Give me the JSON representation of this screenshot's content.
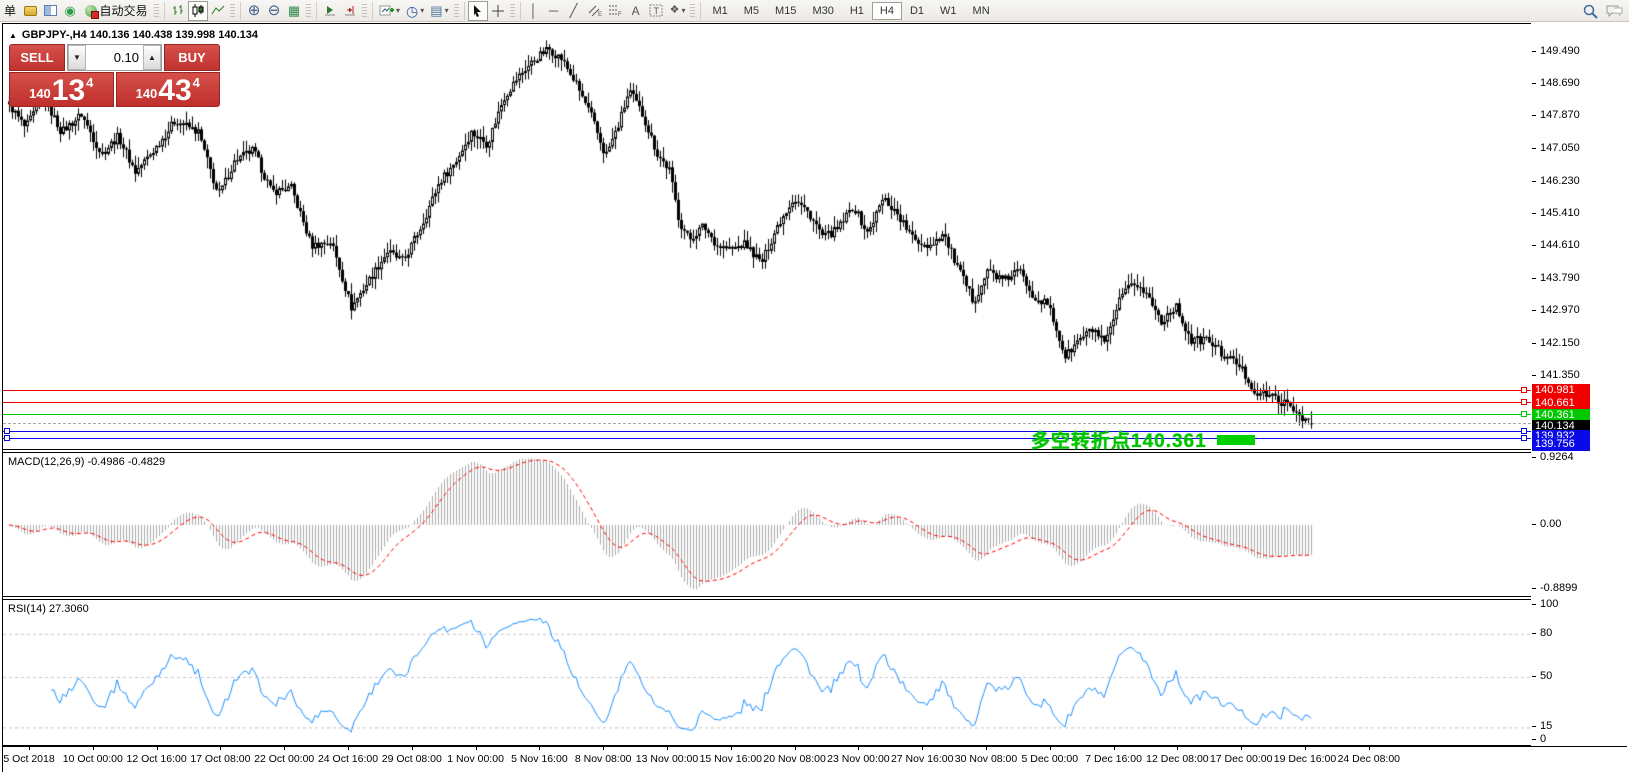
{
  "toolbar": {
    "menu_partial_label": "单",
    "autotrading_label": "自动交易",
    "timeframes": [
      "M1",
      "M5",
      "M15",
      "M30",
      "H1",
      "H4",
      "D1",
      "W1",
      "MN"
    ],
    "active_timeframe": "H4"
  },
  "chart_header": {
    "collapse_icon": "▲",
    "title": "GBPJPY-,H4  140.136 140.438 139.998 140.134"
  },
  "trade_panel": {
    "sell_label": "SELL",
    "buy_label": "BUY",
    "volume": "0.10",
    "sell_price": {
      "prefix": "140",
      "big": "13",
      "sup": "4"
    },
    "buy_price": {
      "prefix": "140",
      "big": "43",
      "sup": "4"
    }
  },
  "annotation": {
    "text": "多空转折点140.361"
  },
  "indicators": {
    "macd_label": "MACD(12,26,9) -0.4986 -0.4829",
    "rsi_label": "RSI(14) 27.3060"
  },
  "chart_data": {
    "type": "candlestick",
    "symbol": "GBPJPY-",
    "timeframe": "H4",
    "ohlc_current": {
      "open": 140.136,
      "high": 140.438,
      "low": 139.998,
      "close": 140.134
    },
    "price_axis_ticks": [
      149.49,
      148.69,
      147.87,
      147.05,
      146.23,
      145.41,
      144.61,
      143.79,
      142.97,
      142.15,
      141.35
    ],
    "time_axis_labels": [
      "5 Oct 2018",
      "10 Oct 00:00",
      "12 Oct 16:00",
      "17 Oct 08:00",
      "22 Oct 00:00",
      "24 Oct 16:00",
      "29 Oct 08:00",
      "1 Nov 00:00",
      "5 Nov 16:00",
      "8 Nov 08:00",
      "13 Nov 00:00",
      "15 Nov 16:00",
      "20 Nov 08:00",
      "23 Nov 00:00",
      "27 Nov 16:00",
      "30 Nov 08:00",
      "5 Dec 00:00",
      "7 Dec 16:00",
      "12 Dec 08:00",
      "17 Dec 00:00",
      "19 Dec 16:00",
      "24 Dec 08:00"
    ],
    "hlines": [
      {
        "price": 140.981,
        "label": "140.981",
        "color": "#f20000",
        "handles": "right"
      },
      {
        "price": 140.661,
        "label": "140.661",
        "color": "#f20000",
        "handles": "right"
      },
      {
        "price": 140.361,
        "label": "140.361",
        "color": "#00c800",
        "handles": "right"
      },
      {
        "price": 139.932,
        "label": "139.932",
        "color": "#0a0ae6",
        "handles": "both"
      },
      {
        "price": 139.756,
        "label": "139.756",
        "color": "#0a0ae6",
        "handles": "both"
      }
    ],
    "current_price": {
      "value": 140.134,
      "label": "140.134",
      "color": "#000000",
      "line_color": "#a8a8a8"
    },
    "price_path": [
      [
        6,
        148.15
      ],
      [
        22,
        147.55
      ],
      [
        40,
        148.35
      ],
      [
        58,
        147.45
      ],
      [
        78,
        147.9
      ],
      [
        98,
        146.9
      ],
      [
        115,
        147.35
      ],
      [
        132,
        146.45
      ],
      [
        152,
        147.05
      ],
      [
        172,
        147.75
      ],
      [
        195,
        147.45
      ],
      [
        215,
        145.85
      ],
      [
        232,
        146.75
      ],
      [
        250,
        147.0
      ],
      [
        268,
        145.95
      ],
      [
        288,
        146.05
      ],
      [
        308,
        144.6
      ],
      [
        328,
        144.7
      ],
      [
        348,
        143.05
      ],
      [
        366,
        143.75
      ],
      [
        384,
        144.45
      ],
      [
        400,
        144.2
      ],
      [
        418,
        145.1
      ],
      [
        436,
        146.2
      ],
      [
        452,
        146.7
      ],
      [
        468,
        147.45
      ],
      [
        484,
        147.15
      ],
      [
        500,
        148.3
      ],
      [
        515,
        148.85
      ],
      [
        530,
        149.25
      ],
      [
        545,
        149.55
      ],
      [
        558,
        149.3
      ],
      [
        572,
        148.7
      ],
      [
        588,
        147.85
      ],
      [
        602,
        146.85
      ],
      [
        614,
        147.55
      ],
      [
        626,
        148.5
      ],
      [
        640,
        147.85
      ],
      [
        654,
        146.9
      ],
      [
        666,
        146.5
      ],
      [
        676,
        145.2
      ],
      [
        686,
        144.75
      ],
      [
        700,
        145.1
      ],
      [
        714,
        144.6
      ],
      [
        728,
        144.5
      ],
      [
        742,
        144.65
      ],
      [
        758,
        144.15
      ],
      [
        774,
        145.1
      ],
      [
        790,
        145.8
      ],
      [
        806,
        145.4
      ],
      [
        820,
        144.8
      ],
      [
        834,
        145.0
      ],
      [
        850,
        145.6
      ],
      [
        864,
        144.9
      ],
      [
        880,
        145.8
      ],
      [
        894,
        145.4
      ],
      [
        910,
        144.75
      ],
      [
        926,
        144.6
      ],
      [
        940,
        144.9
      ],
      [
        955,
        144.0
      ],
      [
        970,
        143.2
      ],
      [
        985,
        144.0
      ],
      [
        1000,
        143.7
      ],
      [
        1015,
        144.0
      ],
      [
        1030,
        143.35
      ],
      [
        1045,
        143.1
      ],
      [
        1062,
        141.8
      ],
      [
        1076,
        142.25
      ],
      [
        1090,
        142.5
      ],
      [
        1102,
        142.1
      ],
      [
        1116,
        143.2
      ],
      [
        1130,
        143.7
      ],
      [
        1144,
        143.35
      ],
      [
        1158,
        142.7
      ],
      [
        1172,
        143.1
      ],
      [
        1188,
        142.2
      ],
      [
        1204,
        142.25
      ],
      [
        1220,
        141.85
      ],
      [
        1236,
        141.6
      ],
      [
        1252,
        140.9
      ],
      [
        1266,
        140.85
      ],
      [
        1280,
        140.65
      ],
      [
        1294,
        140.4
      ],
      [
        1308,
        140.13
      ]
    ],
    "macd_panel": {
      "type": "macd",
      "params": [
        12,
        26,
        9
      ],
      "current_values": [
        -0.4986,
        -0.4829
      ],
      "axis_ticks": [
        0.9264,
        0.0,
        -0.8899
      ],
      "histogram_color": "#ababab",
      "signal_color": "#ff0000"
    },
    "rsi_panel": {
      "type": "rsi",
      "period": 14,
      "current_value": 27.306,
      "levels": [
        80,
        50,
        15
      ],
      "axis_ticks": [
        100,
        80,
        50,
        15,
        0
      ],
      "line_color": "#1e90ff",
      "level_color": "#c4c4c4"
    }
  }
}
